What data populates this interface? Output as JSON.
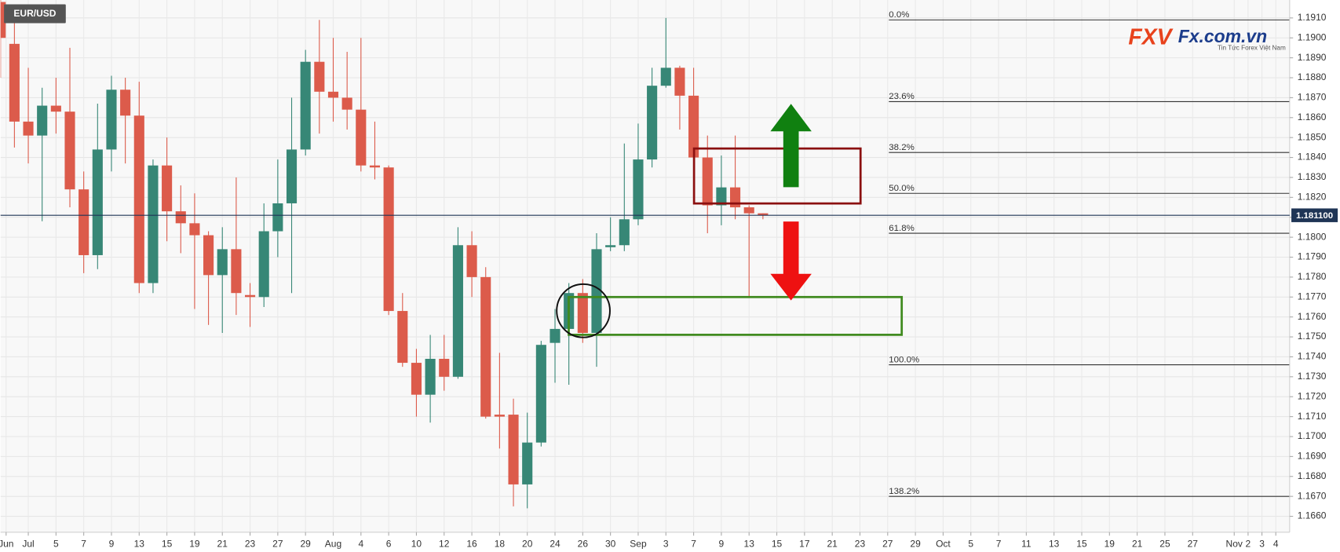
{
  "chart_data": {
    "type": "candlestick",
    "title": "EUR/USD",
    "up_color": "#378776",
    "down_color": "#dc5b4b",
    "grid": true,
    "x": [
      0,
      1,
      2,
      3,
      4,
      5,
      6,
      7,
      8,
      9,
      10,
      11,
      12,
      13,
      14,
      15,
      16,
      17,
      18,
      19,
      20,
      21,
      22,
      23,
      24,
      25,
      26,
      27,
      28,
      29,
      30,
      31,
      32,
      33,
      34,
      35,
      36,
      37,
      38,
      39,
      40,
      41,
      42,
      43,
      44,
      45,
      46,
      47,
      48,
      49,
      50,
      51,
      52,
      53,
      54,
      55
    ],
    "open": [
      1.1918,
      1.1897,
      1.1858,
      1.1851,
      1.1866,
      1.1863,
      1.1824,
      1.1791,
      1.1844,
      1.1874,
      1.1861,
      1.1777,
      1.1836,
      1.1813,
      1.1807,
      1.1801,
      1.1781,
      1.1794,
      1.1771,
      1.177,
      1.1803,
      1.1817,
      1.1844,
      1.1888,
      1.1873,
      1.187,
      1.1864,
      1.1836,
      1.1835,
      1.1763,
      1.1737,
      1.1721,
      1.1739,
      1.173,
      1.1796,
      1.178,
      1.1711,
      1.1711,
      1.1676,
      1.1697,
      1.1747,
      1.1754,
      1.1772,
      1.1752,
      1.1795,
      1.1796,
      1.1809,
      1.1839,
      1.1876,
      1.1885,
      1.1871,
      1.184,
      1.1816,
      1.1825,
      1.1815,
      1.1812
    ],
    "high": [
      1.1935,
      1.191,
      1.1885,
      1.1875,
      1.188,
      1.1895,
      1.1833,
      1.1867,
      1.1881,
      1.188,
      1.1878,
      1.1839,
      1.185,
      1.1826,
      1.1822,
      1.1803,
      1.1805,
      1.183,
      1.1777,
      1.1817,
      1.1839,
      1.187,
      1.1894,
      1.1909,
      1.19,
      1.1893,
      1.19,
      1.1858,
      1.1836,
      1.1772,
      1.1744,
      1.1751,
      1.1751,
      1.1805,
      1.1803,
      1.1785,
      1.1742,
      1.1719,
      1.1712,
      1.1748,
      1.1764,
      1.1777,
      1.1779,
      1.1802,
      1.181,
      1.1847,
      1.1857,
      1.1885,
      1.191,
      1.1886,
      1.1885,
      1.1851,
      1.1841,
      1.1851,
      1.1816,
      1.1812
    ],
    "low": [
      1.188,
      1.1845,
      1.1837,
      1.1808,
      1.1852,
      1.1815,
      1.1782,
      1.1784,
      1.1833,
      1.1837,
      1.1772,
      1.1772,
      1.1798,
      1.1792,
      1.1764,
      1.1756,
      1.1752,
      1.1761,
      1.1755,
      1.1765,
      1.179,
      1.1772,
      1.1841,
      1.1852,
      1.1858,
      1.1854,
      1.1833,
      1.1829,
      1.1761,
      1.1735,
      1.171,
      1.1707,
      1.1723,
      1.1729,
      1.177,
      1.1709,
      1.1694,
      1.1665,
      1.1664,
      1.1695,
      1.1727,
      1.1726,
      1.1747,
      1.1735,
      1.1793,
      1.1793,
      1.1806,
      1.1835,
      1.1875,
      1.1854,
      1.1839,
      1.1802,
      1.1806,
      1.1809,
      1.177,
      1.1809
    ],
    "close": [
      1.19,
      1.1858,
      1.1851,
      1.1866,
      1.1863,
      1.1824,
      1.1791,
      1.1844,
      1.1874,
      1.1861,
      1.1777,
      1.1836,
      1.1813,
      1.1807,
      1.1801,
      1.1781,
      1.1794,
      1.1772,
      1.177,
      1.1803,
      1.1817,
      1.1844,
      1.1888,
      1.1873,
      1.187,
      1.1864,
      1.1836,
      1.1835,
      1.1763,
      1.1737,
      1.1721,
      1.1739,
      1.173,
      1.1796,
      1.178,
      1.171,
      1.171,
      1.1676,
      1.1697,
      1.1746,
      1.1754,
      1.1772,
      1.1752,
      1.1794,
      1.1796,
      1.1809,
      1.1839,
      1.1876,
      1.1885,
      1.1871,
      1.184,
      1.1816,
      1.1825,
      1.1815,
      1.1812,
      1.1811
    ],
    "xlim": [
      0,
      93
    ],
    "xticks": [
      {
        "value": 0.4,
        "label": "Jun"
      },
      {
        "value": 2,
        "label": "Jul"
      },
      {
        "value": 4,
        "label": "5"
      },
      {
        "value": 6,
        "label": "7"
      },
      {
        "value": 8,
        "label": "9"
      },
      {
        "value": 10,
        "label": "13"
      },
      {
        "value": 12,
        "label": "15"
      },
      {
        "value": 14,
        "label": "19"
      },
      {
        "value": 16,
        "label": "21"
      },
      {
        "value": 18,
        "label": "23"
      },
      {
        "value": 20,
        "label": "27"
      },
      {
        "value": 22,
        "label": "29"
      },
      {
        "value": 24,
        "label": "Aug"
      },
      {
        "value": 26,
        "label": "4"
      },
      {
        "value": 28,
        "label": "6"
      },
      {
        "value": 30,
        "label": "10"
      },
      {
        "value": 32,
        "label": "12"
      },
      {
        "value": 34,
        "label": "16"
      },
      {
        "value": 36,
        "label": "18"
      },
      {
        "value": 38,
        "label": "20"
      },
      {
        "value": 40,
        "label": "24"
      },
      {
        "value": 42,
        "label": "26"
      },
      {
        "value": 44,
        "label": "30"
      },
      {
        "value": 46,
        "label": "Sep"
      },
      {
        "value": 48,
        "label": "3"
      },
      {
        "value": 50,
        "label": "7"
      },
      {
        "value": 52,
        "label": "9"
      },
      {
        "value": 54,
        "label": "13"
      },
      {
        "value": 56,
        "label": "15"
      },
      {
        "value": 58,
        "label": "17"
      },
      {
        "value": 60,
        "label": "21"
      },
      {
        "value": 62,
        "label": "23"
      },
      {
        "value": 64,
        "label": "27"
      },
      {
        "value": 66,
        "label": "29"
      },
      {
        "value": 68,
        "label": "Oct"
      },
      {
        "value": 70,
        "label": "5"
      },
      {
        "value": 72,
        "label": "7"
      },
      {
        "value": 74,
        "label": "11"
      },
      {
        "value": 76,
        "label": "13"
      },
      {
        "value": 78,
        "label": "15"
      },
      {
        "value": 80,
        "label": "19"
      },
      {
        "value": 82,
        "label": "21"
      },
      {
        "value": 84,
        "label": "25"
      },
      {
        "value": 86,
        "label": "27"
      },
      {
        "value": 89,
        "label": "Nov"
      },
      {
        "value": 90,
        "label": "2"
      },
      {
        "value": 91,
        "label": "3"
      },
      {
        "value": 92,
        "label": "4"
      }
    ],
    "ylim": [
      1.1652,
      1.1919
    ],
    "yticks": [
      {
        "value": 1.166,
        "label": "1.1660"
      },
      {
        "value": 1.167,
        "label": "1.1670"
      },
      {
        "value": 1.168,
        "label": "1.1680"
      },
      {
        "value": 1.169,
        "label": "1.1690"
      },
      {
        "value": 1.17,
        "label": "1.1700"
      },
      {
        "value": 1.171,
        "label": "1.1710"
      },
      {
        "value": 1.172,
        "label": "1.1720"
      },
      {
        "value": 1.173,
        "label": "1.1730"
      },
      {
        "value": 1.174,
        "label": "1.1740"
      },
      {
        "value": 1.175,
        "label": "1.1750"
      },
      {
        "value": 1.176,
        "label": "1.1760"
      },
      {
        "value": 1.177,
        "label": "1.1770"
      },
      {
        "value": 1.178,
        "label": "1.1780"
      },
      {
        "value": 1.179,
        "label": "1.1790"
      },
      {
        "value": 1.18,
        "label": "1.1800"
      },
      {
        "value": 1.181,
        "label": "1.1810"
      },
      {
        "value": 1.182,
        "label": "1.1820"
      },
      {
        "value": 1.183,
        "label": "1.1830"
      },
      {
        "value": 1.184,
        "label": "1.1840"
      },
      {
        "value": 1.185,
        "label": "1.1850"
      },
      {
        "value": 1.186,
        "label": "1.1860"
      },
      {
        "value": 1.187,
        "label": "1.1870"
      },
      {
        "value": 1.188,
        "label": "1.1880"
      },
      {
        "value": 1.189,
        "label": "1.1890"
      },
      {
        "value": 1.19,
        "label": "1.1900"
      },
      {
        "value": 1.191,
        "label": "1.1910"
      }
    ],
    "last_price": {
      "value": 1.1811,
      "label": "1.181100"
    },
    "fib_levels": [
      {
        "label": "0.0%",
        "price": 1.1909
      },
      {
        "label": "23.6%",
        "price": 1.1868
      },
      {
        "label": "38.2%",
        "price": 1.18425
      },
      {
        "label": "50.0%",
        "price": 1.1822
      },
      {
        "label": "61.8%",
        "price": 1.1802
      },
      {
        "label": "100.0%",
        "price": 1.1736
      },
      {
        "label": "138.2%",
        "price": 1.167
      }
    ]
  },
  "logo": {
    "brand": "FXV",
    "site": "Fx.com.vn",
    "tagline": "Tin Tức Forex Việt Nam"
  }
}
